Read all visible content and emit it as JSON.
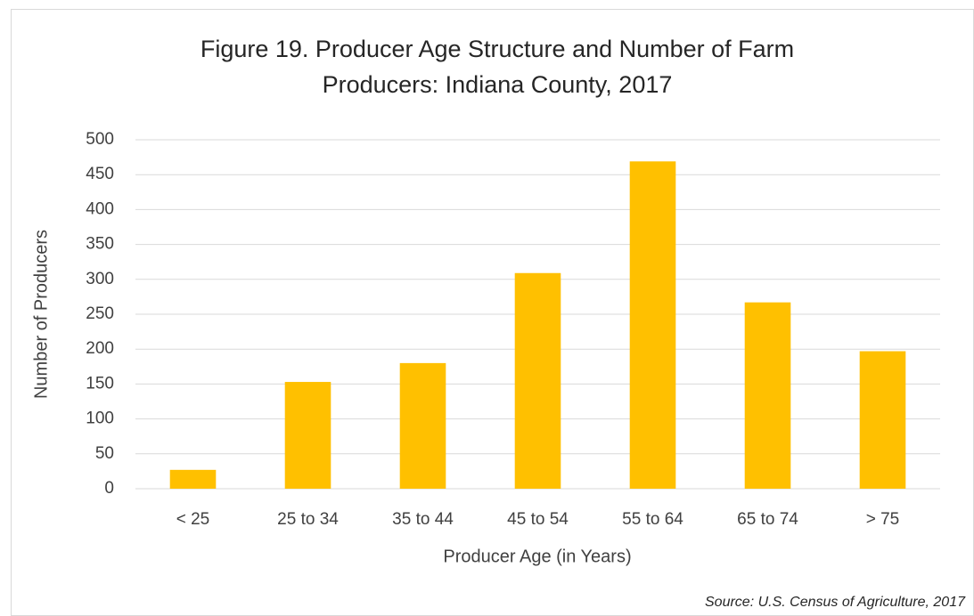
{
  "chart_data": {
    "type": "bar",
    "title": [
      "Figure 19. Producer Age Structure and Number of Farm",
      "Producers: Indiana County, 2017"
    ],
    "x_label": "Producer Age (in Years)",
    "y_label": "Number of Producers",
    "source": "Source: U.S. Census of Agriculture, 2017",
    "categories": [
      "< 25",
      "25 to 34",
      "35 to 44",
      "45 to 54",
      "55 to 64",
      "65 to 74",
      "> 75"
    ],
    "values": [
      27,
      153,
      180,
      309,
      469,
      267,
      197
    ],
    "color": "#ffc000",
    "ylim": [
      0,
      500
    ],
    "yticks": [
      0,
      50,
      100,
      150,
      200,
      250,
      300,
      350,
      400,
      450,
      500
    ],
    "grid": true
  }
}
